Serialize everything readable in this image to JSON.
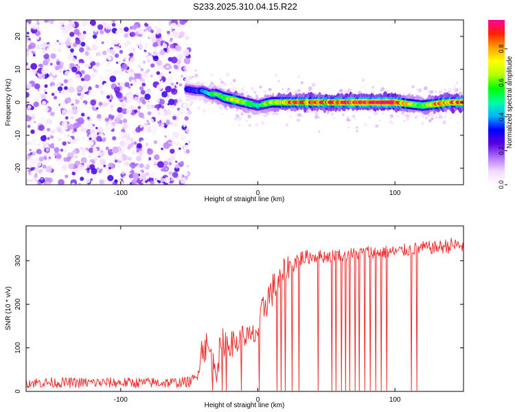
{
  "title": "S233.2025.310.04.15.R22",
  "chart_data": [
    {
      "type": "heatmap",
      "title": "S233.2025.310.04.15.R22",
      "xlabel": "Height of straight line (km)",
      "ylabel": "Frequency (Hz)",
      "xlim": [
        -169,
        150
      ],
      "ylim": [
        -25,
        25
      ],
      "xticks": [
        -100,
        0,
        100
      ],
      "yticks": [
        -20,
        -10,
        0,
        10,
        20
      ],
      "noise_region": {
        "x_range": [
          -169,
          -50
        ],
        "description": "broadband low-amplitude speckle"
      },
      "signal_trace": {
        "x": [
          -52,
          -45,
          -40,
          -35,
          -30,
          -25,
          -20,
          -15,
          -10,
          -5,
          0,
          10,
          20,
          40,
          60,
          80,
          100,
          110,
          120,
          130,
          140,
          150
        ],
        "freq_hz": [
          4.0,
          3.5,
          3.5,
          2.5,
          2.5,
          1.5,
          1.0,
          0.5,
          0.0,
          -0.5,
          -1.0,
          0.0,
          0.0,
          0.0,
          0.0,
          0.0,
          0.0,
          -0.5,
          -1.0,
          -0.5,
          0.0,
          0.0
        ],
        "amplitude": [
          0.3,
          0.35,
          0.4,
          0.45,
          0.55,
          0.6,
          0.7,
          0.75,
          0.6,
          0.55,
          0.5,
          0.65,
          0.8,
          0.85,
          0.9,
          0.92,
          0.95,
          0.7,
          0.6,
          0.8,
          0.85,
          0.85
        ]
      },
      "colorbar": {
        "label": "Normalized spectral amplitude",
        "range": [
          0.0,
          0.97
        ],
        "ticks": [
          "0.0",
          "0.2",
          "0.4",
          "0.6",
          "0.8"
        ],
        "tick_values": [
          0.0,
          0.2,
          0.4,
          0.6,
          0.8
        ],
        "colors": [
          "#ffffff",
          "#f2d9ff",
          "#b070ff",
          "#5a00e0",
          "#0000ff",
          "#00b4ff",
          "#00ffa0",
          "#00ff00",
          "#b4ff00",
          "#ffff00",
          "#ffa000",
          "#ff2000",
          "#ff00a0"
        ]
      }
    },
    {
      "type": "line",
      "xlabel": "Height of straight line (km)",
      "ylabel": "SNR (10 * v/v)",
      "xlim": [
        -169,
        150
      ],
      "ylim": [
        0,
        380
      ],
      "xticks": [
        -100,
        0,
        100
      ],
      "yticks": [
        0,
        100,
        200,
        300
      ],
      "line_color": "#ee2d2d",
      "series": [
        {
          "name": "SNR",
          "x": [
            -169,
            -140,
            -110,
            -80,
            -60,
            -50,
            -45,
            -40,
            -35,
            -30,
            -25,
            -20,
            -15,
            -10,
            -5,
            0,
            5,
            10,
            15,
            20,
            25,
            30,
            40,
            50,
            60,
            70,
            80,
            90,
            100,
            110,
            120,
            130,
            140,
            150
          ],
          "values": [
            20,
            20,
            20,
            20,
            20,
            22,
            30,
            110,
            90,
            60,
            120,
            110,
            110,
            130,
            120,
            140,
            200,
            230,
            250,
            280,
            295,
            305,
            310,
            310,
            315,
            315,
            320,
            320,
            320,
            325,
            330,
            330,
            335,
            335
          ],
          "noise_amplitude": [
            12,
            12,
            12,
            12,
            12,
            12,
            15,
            40,
            40,
            40,
            40,
            30,
            30,
            30,
            30,
            35,
            40,
            40,
            35,
            30,
            25,
            20,
            15,
            15,
            15,
            15,
            15,
            15,
            15,
            15,
            15,
            15,
            18,
            18
          ],
          "dropouts_x": [
            -33,
            -26,
            -23,
            -12,
            1,
            14,
            17,
            20,
            25,
            30,
            44,
            54,
            57,
            61,
            64,
            67,
            71,
            74,
            78,
            82,
            86,
            90,
            94,
            112,
            116
          ]
        }
      ]
    }
  ]
}
